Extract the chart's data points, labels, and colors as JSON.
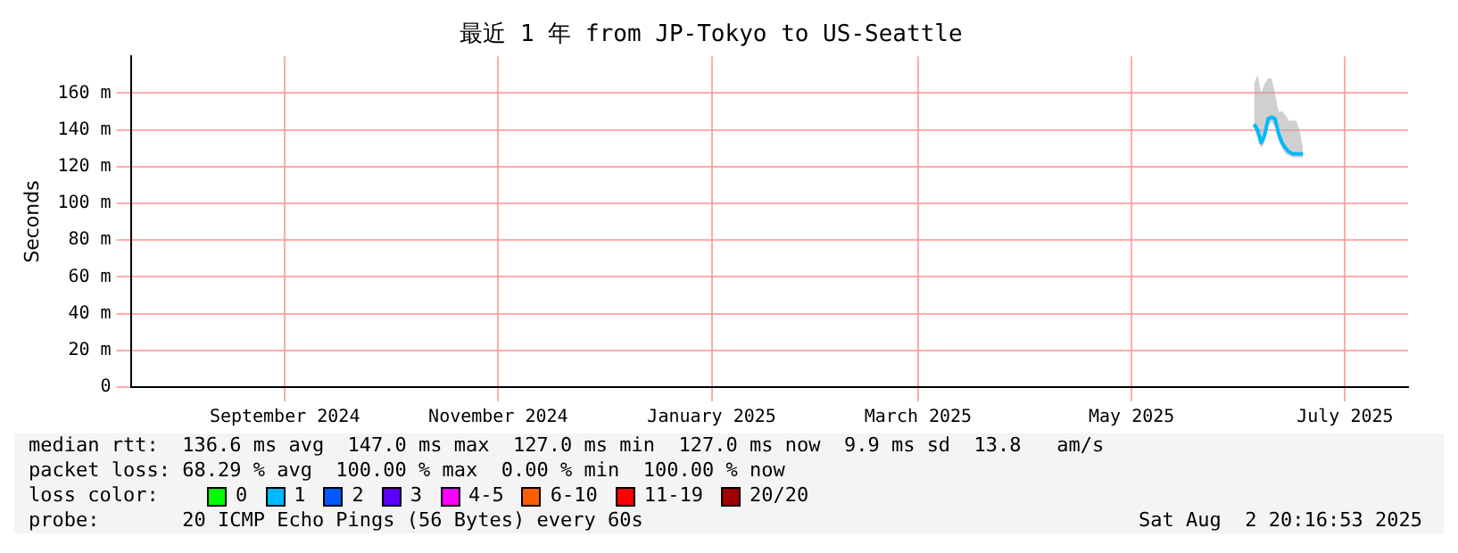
{
  "chart_data": {
    "type": "line",
    "title": "最近 1 年 from JP-Tokyo to US-Seattle",
    "ylabel": "Seconds",
    "x": [
      "2025-06-19",
      "2025-06-20",
      "2025-06-21",
      "2025-06-22",
      "2025-06-23",
      "2025-06-24",
      "2025-06-25",
      "2025-06-26",
      "2025-06-27",
      "2025-06-28",
      "2025-06-29",
      "2025-06-30",
      "2025-07-01",
      "2025-07-02",
      "2025-07-03"
    ],
    "series": [
      {
        "color": "#00b8ff",
        "values": [
          143,
          140,
          133,
          137,
          146,
          147,
          146,
          138,
          133,
          130,
          128,
          127,
          127,
          127,
          127
        ],
        "lower": [
          140,
          136,
          130,
          133,
          142,
          144,
          142,
          134,
          130,
          127,
          126,
          125,
          125,
          125,
          125
        ],
        "upper": [
          165,
          170,
          160,
          165,
          168,
          168,
          160,
          150,
          150,
          148,
          145,
          145,
          145,
          140,
          130
        ]
      }
    ],
    "xlim": [
      "2024-08-02",
      "2025-08-02"
    ],
    "xticks": [
      {
        "value": "2024-09-15",
        "label": "September 2024"
      },
      {
        "value": "2024-11-15",
        "label": "November 2024"
      },
      {
        "value": "2025-01-15",
        "label": "January 2025"
      },
      {
        "value": "2025-03-15",
        "label": "March 2025"
      },
      {
        "value": "2025-05-15",
        "label": "May 2025"
      },
      {
        "value": "2025-07-15",
        "label": "July 2025"
      }
    ],
    "ylim": [
      0,
      180
    ],
    "yticks": [
      {
        "value": 0,
        "label": "0"
      },
      {
        "value": 20,
        "label": "20 m"
      },
      {
        "value": 40,
        "label": "40 m"
      },
      {
        "value": 60,
        "label": "60 m"
      },
      {
        "value": 80,
        "label": "80 m"
      },
      {
        "value": 100,
        "label": "100 m"
      },
      {
        "value": 120,
        "label": "120 m"
      },
      {
        "value": 140,
        "label": "140 m"
      },
      {
        "value": 160,
        "label": "160 m"
      }
    ],
    "grid": true,
    "legend": false,
    "marker": "none",
    "line_style": "solid",
    "annotations": [
      "median rtt:  136.6 ms avg  147.0 ms max  127.0 ms min  127.0 ms now  9.9 ms sd  13.8   am/s",
      "packet loss: 68.29 % avg  100.00 % max  0.00 % min  100.00 % now",
      "loss color:",
      "0",
      "1",
      "2",
      "3",
      "4-5",
      "6-10",
      "11-19",
      "20/20",
      "probe:       20 ICMP Echo Pings (56 Bytes) every 60s",
      "Sat Aug  2 20:16:53 2025"
    ]
  }
}
